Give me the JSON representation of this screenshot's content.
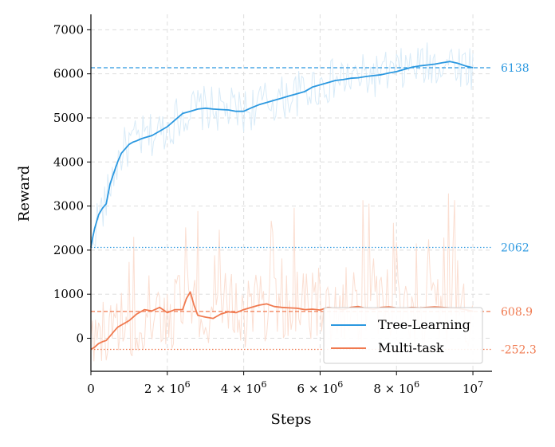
{
  "chart_data": {
    "type": "line",
    "title": "",
    "xlabel": "Steps",
    "ylabel": "Reward",
    "xlim": [
      0,
      10500000
    ],
    "ylim": [
      -750,
      7350
    ],
    "x_ticks": [
      {
        "value": 0,
        "base": "0",
        "exp": ""
      },
      {
        "value": 2000000,
        "base": "2 × 10",
        "exp": "6"
      },
      {
        "value": 4000000,
        "base": "4 × 10",
        "exp": "6"
      },
      {
        "value": 6000000,
        "base": "6 × 10",
        "exp": "6"
      },
      {
        "value": 8000000,
        "base": "8 × 10",
        "exp": "6"
      },
      {
        "value": 10000000,
        "base": "10",
        "exp": "7"
      }
    ],
    "y_ticks": [
      0,
      1000,
      2000,
      3000,
      4000,
      5000,
      6000,
      7000
    ],
    "grid": true,
    "legend_position": "lower-right",
    "series": [
      {
        "name": "Tree-Learning",
        "color": "#2b98e0",
        "raw_color": "#d6eaf8",
        "x": [
          0,
          50000,
          100000,
          200000,
          300000,
          400000,
          500000,
          600000,
          700000,
          800000,
          900000,
          1000000,
          1100000,
          1200000,
          1300000,
          1400000,
          1600000,
          1800000,
          2000000,
          2200000,
          2400000,
          2600000,
          2800000,
          3000000,
          3200000,
          3400000,
          3600000,
          3800000,
          4000000,
          4200000,
          4400000,
          4600000,
          4800000,
          5000000,
          5200000,
          5400000,
          5600000,
          5800000,
          6000000,
          6200000,
          6400000,
          6600000,
          6800000,
          7000000,
          7200000,
          7400000,
          7600000,
          7800000,
          8000000,
          8200000,
          8400000,
          8600000,
          8800000,
          9000000,
          9200000,
          9400000,
          9600000,
          9800000,
          10000000
        ],
        "y": [
          2062,
          2300,
          2500,
          2800,
          2950,
          3050,
          3500,
          3750,
          4000,
          4200,
          4300,
          4400,
          4450,
          4480,
          4520,
          4550,
          4600,
          4700,
          4800,
          4950,
          5100,
          5150,
          5200,
          5220,
          5200,
          5190,
          5180,
          5150,
          5150,
          5230,
          5300,
          5350,
          5400,
          5450,
          5500,
          5550,
          5600,
          5700,
          5750,
          5800,
          5850,
          5870,
          5900,
          5910,
          5940,
          5960,
          5980,
          6020,
          6050,
          6100,
          6150,
          6180,
          6200,
          6220,
          6250,
          6280,
          6240,
          6180,
          6138
        ],
        "final": 6138,
        "initial": 2062
      },
      {
        "name": "Multi-task",
        "color": "#f07a50",
        "raw_color": "#fbdccf",
        "x": [
          0,
          100000,
          200000,
          300000,
          400000,
          500000,
          600000,
          700000,
          800000,
          900000,
          1000000,
          1200000,
          1400000,
          1600000,
          1800000,
          2000000,
          2200000,
          2400000,
          2500000,
          2600000,
          2700000,
          2800000,
          3000000,
          3200000,
          3400000,
          3600000,
          3800000,
          4000000,
          4200000,
          4400000,
          4600000,
          4800000,
          5000000,
          5200000,
          5400000,
          5600000,
          5800000,
          6000000,
          6200000,
          6400000,
          6600000,
          6800000,
          7000000,
          7200000,
          7400000,
          7600000,
          7800000,
          8000000,
          8200000,
          8400000,
          8600000,
          8800000,
          9000000,
          9200000,
          9400000,
          9600000,
          9800000,
          10000000
        ],
        "y": [
          -252.3,
          -200,
          -120,
          -80,
          -50,
          50,
          150,
          250,
          300,
          350,
          400,
          550,
          650,
          620,
          700,
          580,
          650,
          650,
          900,
          1050,
          750,
          520,
          480,
          450,
          550,
          600,
          580,
          650,
          700,
          750,
          780,
          720,
          700,
          690,
          680,
          650,
          660,
          640,
          700,
          680,
          650,
          700,
          720,
          680,
          660,
          700,
          710,
          690,
          680,
          700,
          690,
          700,
          710,
          700,
          690,
          680,
          650,
          608.9
        ],
        "final": 608.9,
        "initial": -252.3
      }
    ],
    "annotations": [
      {
        "value": 6138,
        "text": "6138",
        "color": "#2b98e0",
        "dash": "dashed"
      },
      {
        "value": 2062,
        "text": "2062",
        "color": "#2b98e0",
        "dash": "dotted"
      },
      {
        "value": 608.9,
        "text": "608.9",
        "color": "#f07a50",
        "dash": "dashed"
      },
      {
        "value": -252.3,
        "text": "-252.3",
        "color": "#f07a50",
        "dash": "dotted"
      }
    ]
  }
}
